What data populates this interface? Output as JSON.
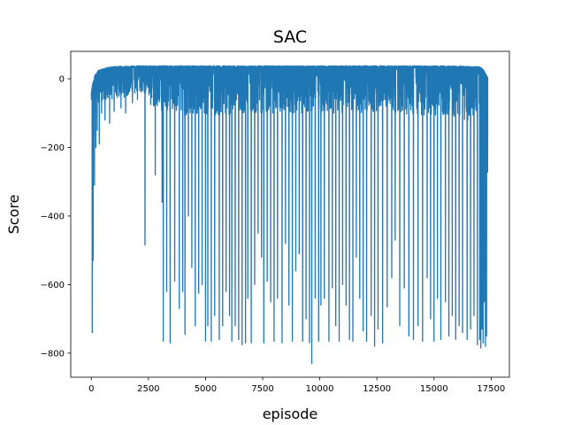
{
  "chart_data": {
    "type": "line",
    "title": "SAC",
    "xlabel": "episode",
    "ylabel": "Score",
    "xlim": [
      -900,
      18300
    ],
    "ylim": [
      -870,
      80
    ],
    "xticks": [
      0,
      2500,
      5000,
      7500,
      10000,
      12500,
      15000,
      17500
    ],
    "xtick_labels": [
      "0",
      "2500",
      "5000",
      "7500",
      "10000",
      "12500",
      "15000",
      "17500"
    ],
    "yticks": [
      0,
      -200,
      -400,
      -600,
      -800
    ],
    "ytick_labels": [
      "0",
      "−200",
      "−400",
      "−600",
      "−800"
    ],
    "grid": false,
    "series": [
      {
        "color": "#1f77b4",
        "episodes": 17350,
        "upper_envelope": [
          [
            0,
            -30
          ],
          [
            150,
            10
          ],
          [
            300,
            25
          ],
          [
            600,
            32
          ],
          [
            1000,
            36
          ],
          [
            2000,
            38
          ],
          [
            5000,
            38
          ],
          [
            10000,
            38
          ],
          [
            15000,
            38
          ],
          [
            16500,
            37
          ],
          [
            17000,
            35
          ],
          [
            17150,
            28
          ],
          [
            17350,
            5
          ]
        ],
        "noise_band": [
          [
            0,
            -60
          ],
          [
            200,
            -70
          ],
          [
            500,
            -65
          ],
          [
            1000,
            -60
          ],
          [
            1700,
            -50
          ],
          [
            2300,
            -40
          ],
          [
            2800,
            -90
          ],
          [
            4000,
            -110
          ],
          [
            8000,
            -100
          ],
          [
            12000,
            -100
          ],
          [
            16000,
            -110
          ],
          [
            17000,
            -140
          ],
          [
            17350,
            -300
          ]
        ],
        "dips": [
          [
            40,
            -740
          ],
          [
            80,
            -530
          ],
          [
            140,
            -310
          ],
          [
            200,
            -200
          ],
          [
            260,
            -150
          ],
          [
            350,
            -190
          ],
          [
            450,
            -100
          ],
          [
            600,
            -120
          ],
          [
            800,
            -130
          ],
          [
            1000,
            -95
          ],
          [
            1300,
            -85
          ],
          [
            1500,
            -100
          ],
          [
            1800,
            -70
          ],
          [
            2020,
            -60
          ],
          [
            2350,
            -485
          ],
          [
            2600,
            -75
          ],
          [
            2800,
            -280
          ],
          [
            3100,
            -360
          ],
          [
            3150,
            -765
          ],
          [
            3300,
            -620
          ],
          [
            3450,
            -770
          ],
          [
            3650,
            -590
          ],
          [
            3850,
            -670
          ],
          [
            4000,
            -620
          ],
          [
            4100,
            -745
          ],
          [
            4250,
            -400
          ],
          [
            4400,
            -550
          ],
          [
            4550,
            -720
          ],
          [
            4700,
            -625
          ],
          [
            4850,
            -600
          ],
          [
            5000,
            -765
          ],
          [
            5100,
            -720
          ],
          [
            5250,
            -765
          ],
          [
            5400,
            -690
          ],
          [
            5600,
            -760
          ],
          [
            5750,
            -720
          ],
          [
            5900,
            -620
          ],
          [
            6050,
            -690
          ],
          [
            6150,
            -765
          ],
          [
            6300,
            -720
          ],
          [
            6450,
            -760
          ],
          [
            6600,
            -775
          ],
          [
            6750,
            -770
          ],
          [
            6850,
            -640
          ],
          [
            7000,
            -770
          ],
          [
            7150,
            -600
          ],
          [
            7300,
            -450
          ],
          [
            7450,
            -520
          ],
          [
            7550,
            -770
          ],
          [
            7700,
            -590
          ],
          [
            7850,
            -650
          ],
          [
            8000,
            -765
          ],
          [
            8150,
            -640
          ],
          [
            8350,
            -770
          ],
          [
            8500,
            -480
          ],
          [
            8650,
            -660
          ],
          [
            8800,
            -765
          ],
          [
            8950,
            -560
          ],
          [
            9100,
            -510
          ],
          [
            9250,
            -765
          ],
          [
            9400,
            -700
          ],
          [
            9550,
            -770
          ],
          [
            9650,
            -830
          ],
          [
            9800,
            -640
          ],
          [
            9950,
            -765
          ],
          [
            10050,
            -660
          ],
          [
            10200,
            -640
          ],
          [
            10400,
            -765
          ],
          [
            10550,
            -610
          ],
          [
            10700,
            -720
          ],
          [
            10850,
            -765
          ],
          [
            11000,
            -600
          ],
          [
            11150,
            -660
          ],
          [
            11300,
            -760
          ],
          [
            11450,
            -765
          ],
          [
            11600,
            -520
          ],
          [
            11750,
            -640
          ],
          [
            11900,
            -735
          ],
          [
            12050,
            -765
          ],
          [
            12250,
            -690
          ],
          [
            12400,
            -780
          ],
          [
            12550,
            -730
          ],
          [
            12750,
            -770
          ],
          [
            12950,
            -665
          ],
          [
            13150,
            -580
          ],
          [
            13300,
            -470
          ],
          [
            13500,
            -720
          ],
          [
            13700,
            -610
          ],
          [
            13900,
            -750
          ],
          [
            14100,
            -760
          ],
          [
            14300,
            -720
          ],
          [
            14500,
            -765
          ],
          [
            14700,
            -580
          ],
          [
            14850,
            -700
          ],
          [
            15000,
            -765
          ],
          [
            15150,
            -640
          ],
          [
            15300,
            -760
          ],
          [
            15500,
            -650
          ],
          [
            15650,
            -750
          ],
          [
            15800,
            -690
          ],
          [
            15950,
            -760
          ],
          [
            16100,
            -720
          ],
          [
            16250,
            -740
          ],
          [
            16450,
            -760
          ],
          [
            16600,
            -730
          ],
          [
            16750,
            -690
          ],
          [
            16900,
            -775
          ],
          [
            17000,
            -760
          ],
          [
            17050,
            -785
          ],
          [
            17100,
            -730
          ],
          [
            17150,
            -770
          ],
          [
            17200,
            -650
          ],
          [
            17250,
            -780
          ],
          [
            17300,
            -750
          ],
          [
            17350,
            -160
          ]
        ]
      }
    ]
  }
}
